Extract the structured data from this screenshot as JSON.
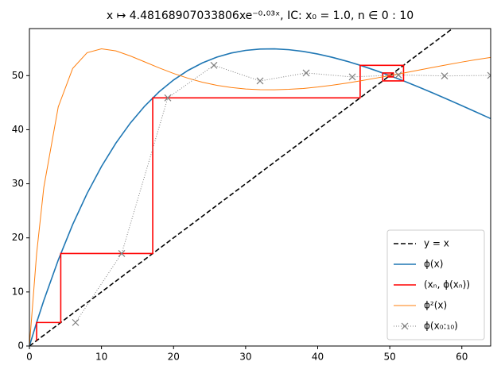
{
  "chart_data": {
    "type": "line",
    "title": "x ↦ 4.48168907033806xe⁻⁰·⁰³ˣ, IC: x₀ = 1.0, n ∈ 0 : 10",
    "xlim": [
      0,
      64
    ],
    "ylim": [
      0,
      58.7
    ],
    "xticks": [
      0,
      10,
      20,
      30,
      40,
      50,
      60
    ],
    "yticks": [
      0,
      10,
      20,
      30,
      40,
      50
    ],
    "legend": "lower right",
    "series": [
      {
        "name": "y = x",
        "color": "#000000",
        "style": "dashed",
        "x": [
          0,
          64
        ],
        "values": [
          0,
          64
        ]
      },
      {
        "name": "ϕ(x)",
        "color": "#1f77b4",
        "style": "solid",
        "x": [
          0,
          1,
          2,
          4,
          6,
          8,
          10,
          12,
          14,
          16,
          18,
          20,
          22,
          24,
          26,
          28,
          30,
          32,
          34,
          36,
          38,
          40,
          42,
          44,
          46,
          48,
          50,
          52,
          54,
          56,
          58,
          60,
          62,
          64
        ],
        "values": [
          0,
          4.349,
          8.441,
          15.9,
          22.461,
          28.204,
          33.201,
          37.521,
          41.226,
          44.371,
          47.011,
          49.192,
          50.96,
          52.355,
          53.415,
          54.174,
          54.664,
          54.911,
          54.946,
          54.791,
          54.466,
          53.994,
          53.392,
          52.677,
          51.866,
          50.968,
          49.999,
          48.973,
          47.894,
          46.774,
          45.624,
          44.449,
          43.255,
          42.052
        ]
      },
      {
        "name": "(xₙ, ϕ(xₙ))",
        "color": "#ff0000",
        "style": "solid",
        "x": [
          1,
          1,
          4.349,
          4.349,
          17.11,
          17.11,
          45.89,
          45.89,
          51.91,
          51.91,
          49.02,
          49.02,
          50.49,
          50.49,
          49.76,
          49.76,
          50.13,
          50.13,
          49.94,
          49.94,
          50.04
        ],
        "values": [
          1,
          4.349,
          4.349,
          17.11,
          17.11,
          45.89,
          45.89,
          51.91,
          51.91,
          49.02,
          49.02,
          50.49,
          50.49,
          49.76,
          49.76,
          50.13,
          50.13,
          49.94,
          49.94,
          50.04,
          50.04
        ]
      },
      {
        "name": "ϕ²(x)",
        "color": "#ff7f0e",
        "style": "thin",
        "x": [
          0,
          1,
          2,
          4,
          6,
          8,
          10,
          12,
          14,
          16,
          18,
          20,
          22,
          24,
          26,
          28,
          30,
          32,
          34,
          36,
          38,
          40,
          42,
          44,
          46,
          48,
          50,
          52,
          54,
          56,
          58,
          60,
          62,
          64
        ],
        "values": [
          0,
          17.11,
          29.37,
          44.22,
          51.32,
          54.24,
          54.96,
          54.57,
          53.64,
          52.54,
          51.43,
          50.4,
          49.52,
          48.78,
          48.21,
          47.81,
          47.53,
          47.4,
          47.38,
          47.47,
          47.62,
          47.89,
          48.22,
          48.61,
          49.05,
          49.52,
          50.0,
          50.5,
          51.02,
          51.53,
          52.02,
          52.51,
          52.96,
          53.37
        ]
      },
      {
        "name": "ϕ(x₀:₁₀)",
        "color": "#808080",
        "style": "dotted-x",
        "x": [
          6.4,
          12.8,
          19.2,
          25.6,
          32,
          38.4,
          44.8,
          51.2,
          57.6,
          64
        ],
        "values": [
          4.349,
          17.11,
          45.89,
          51.91,
          49.02,
          50.49,
          49.76,
          50.13,
          49.94,
          50.04
        ]
      }
    ]
  }
}
